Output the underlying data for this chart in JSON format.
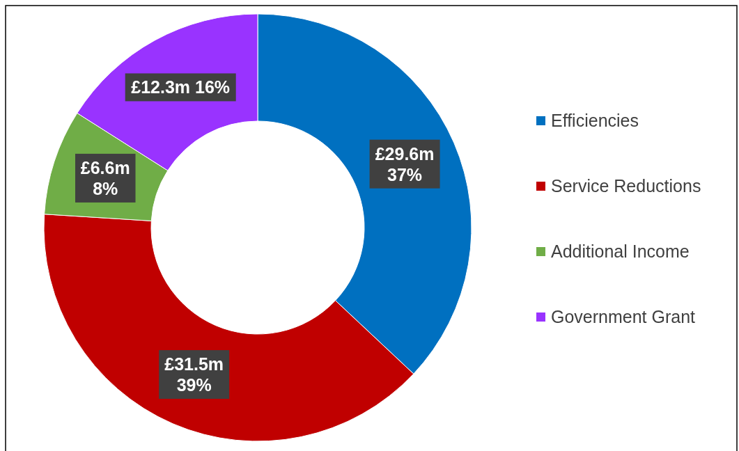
{
  "chart_data": {
    "type": "donut",
    "categories": [
      "Efficiencies",
      "Service Reductions",
      "Additional Income",
      "Government Grant"
    ],
    "values": [
      37,
      39,
      8,
      16
    ],
    "colors": [
      "#0070c0",
      "#c00000",
      "#70ad47",
      "#9933ff"
    ],
    "value_labels": [
      "£29.6m\n37%",
      "£31.5m\n39%",
      "£6.6m\n8%",
      "£12.3m 16%"
    ],
    "legend": "right"
  }
}
